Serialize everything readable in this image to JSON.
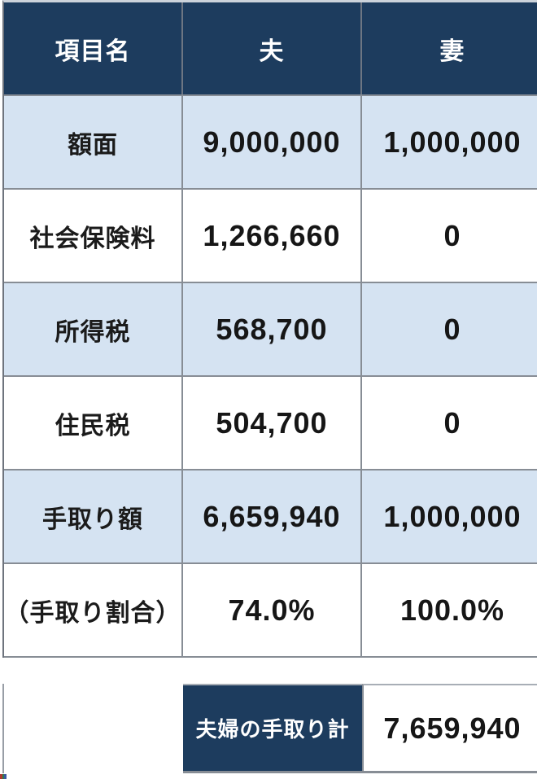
{
  "table": {
    "header": {
      "item": "項目名",
      "husband": "夫",
      "wife": "妻"
    },
    "rows": [
      {
        "label": "額面",
        "husband": "9,000,000",
        "wife": "1,000,000"
      },
      {
        "label": "社会保険料",
        "husband": "1,266,660",
        "wife": "0"
      },
      {
        "label": "所得税",
        "husband": "568,700",
        "wife": "0"
      },
      {
        "label": "住民税",
        "husband": "504,700",
        "wife": "0"
      },
      {
        "label": "手取り額",
        "husband": "6,659,940",
        "wife": "1,000,000"
      },
      {
        "label": "（手取り割合）",
        "husband": "74.0%",
        "wife": "100.0%"
      }
    ],
    "total": {
      "label": "夫婦の手取り計",
      "value": "7,659,940"
    }
  },
  "colors": {
    "header_bg": "#1d3c5e",
    "alt_row_bg": "#d5e3f2",
    "border": "#878d95",
    "header_text": "#ffffff",
    "body_text": "#161616"
  }
}
